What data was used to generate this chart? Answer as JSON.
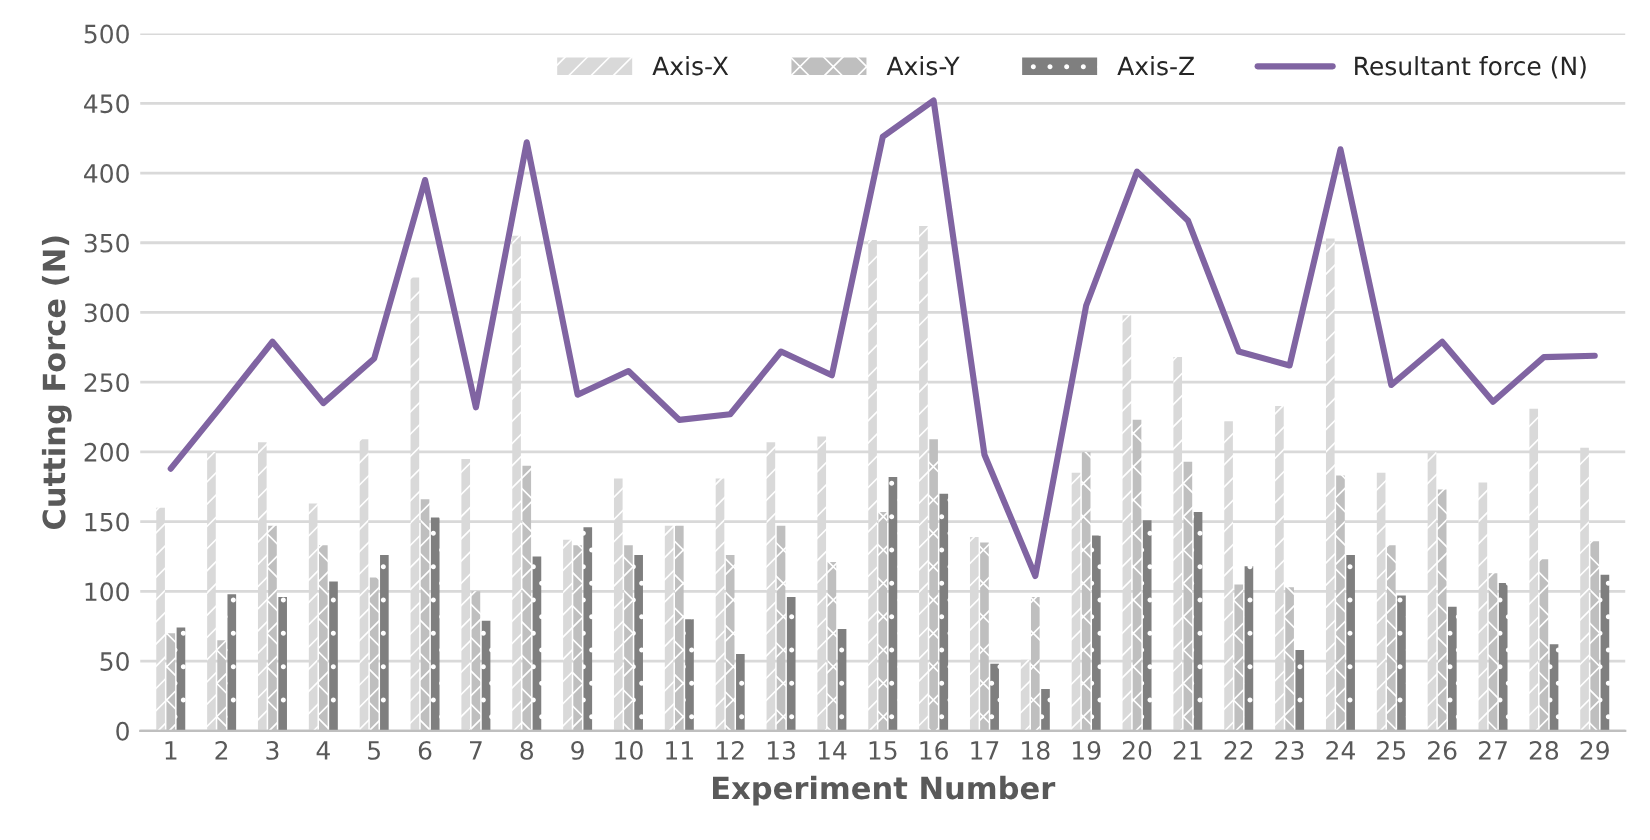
{
  "chart_data": {
    "type": "bar",
    "xlabel": "Experiment Number",
    "ylabel": "Cutting Force (N)",
    "categories": [
      "1",
      "2",
      "3",
      "4",
      "5",
      "6",
      "7",
      "8",
      "9",
      "10",
      "11",
      "12",
      "13",
      "14",
      "15",
      "16",
      "17",
      "18",
      "19",
      "20",
      "21",
      "22",
      "23",
      "24",
      "25",
      "26",
      "27",
      "28",
      "29"
    ],
    "series": [
      {
        "name": "Axis-X",
        "color": "#d9d9d9",
        "values": [
          160,
          200,
          207,
          163,
          209,
          325,
          195,
          355,
          137,
          181,
          147,
          181,
          207,
          211,
          352,
          362,
          139,
          51,
          185,
          298,
          268,
          222,
          233,
          353,
          185,
          200,
          178,
          231,
          203
        ]
      },
      {
        "name": "Axis-Y",
        "color": "#bfbfbf",
        "values": [
          70,
          65,
          147,
          133,
          110,
          166,
          100,
          190,
          133,
          133,
          147,
          126,
          147,
          121,
          157,
          209,
          135,
          96,
          200,
          223,
          193,
          105,
          103,
          183,
          133,
          173,
          113,
          123,
          136
        ]
      },
      {
        "name": "Axis-Z",
        "color": "#7f7f7f",
        "values": [
          74,
          98,
          96,
          107,
          126,
          153,
          79,
          125,
          146,
          126,
          80,
          55,
          96,
          73,
          182,
          170,
          48,
          30,
          140,
          151,
          157,
          118,
          58,
          126,
          97,
          89,
          106,
          62,
          112
        ]
      },
      {
        "name": "Resultant force (N)",
        "type": "line",
        "color": "#8064a2",
        "values": [
          188,
          233,
          279,
          235,
          267,
          395,
          232,
          422,
          241,
          258,
          223,
          227,
          272,
          255,
          426,
          452,
          198,
          111,
          305,
          401,
          366,
          272,
          262,
          417,
          248,
          279,
          236,
          268,
          269
        ]
      }
    ],
    "ylim": [
      0,
      500
    ],
    "yticks": [
      0,
      50,
      100,
      150,
      200,
      250,
      300,
      350,
      400,
      450,
      500
    ],
    "grid": "y",
    "legend": "top right",
    "marker": "none",
    "line_style": "solid"
  }
}
